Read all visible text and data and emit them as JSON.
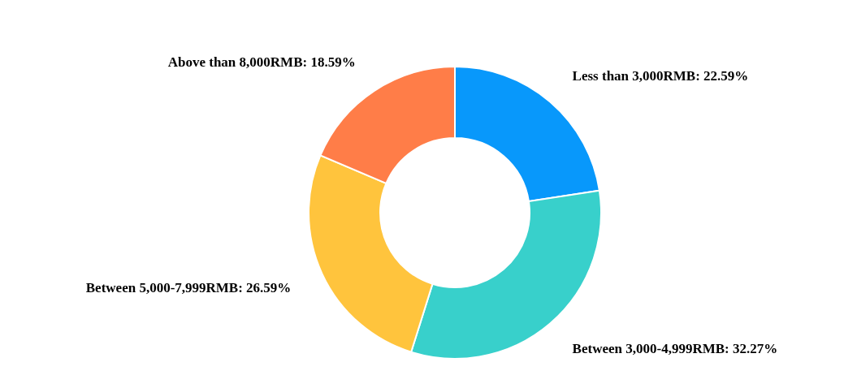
{
  "chart_data": {
    "type": "donut",
    "categories": [
      "Less than 3,000RMB",
      "Between 3,000-4,999RMB",
      "Between 5,000-7,999RMB",
      "Above than 8,000RMB"
    ],
    "values": [
      22.59,
      32.27,
      26.59,
      18.59
    ],
    "value_labels": [
      "22.59%",
      "32.27%",
      "26.59%",
      "18.59%"
    ],
    "colors": [
      "#0898fb",
      "#38d0cb",
      "#ffc43d",
      "#ff7d48"
    ]
  }
}
